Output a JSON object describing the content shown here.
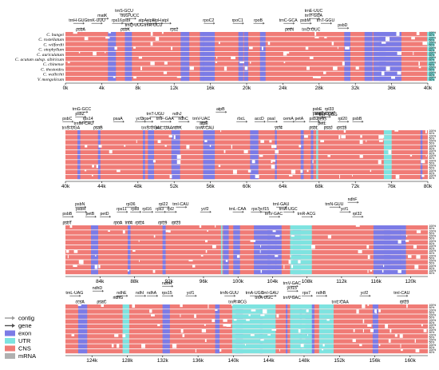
{
  "species": [
    "C. bungei",
    "C. rostellatum",
    "C. wilfordii",
    "C. otophyllum",
    "C. auriculatum",
    "C. acutum subsp. sibiricum",
    "C. chinense",
    "C. thesioides",
    "C. wallichii",
    "V. mongolicum"
  ],
  "percent_ticks": [
    "100%",
    "50%"
  ],
  "legend": [
    {
      "label": "contig",
      "kind": "arrow",
      "color": "#9a9a9a"
    },
    {
      "label": "gene",
      "kind": "arrow",
      "color": "#505050"
    },
    {
      "label": "exon",
      "kind": "box",
      "color": "#7b7be6"
    },
    {
      "label": "UTR",
      "kind": "box",
      "color": "#7ee3e0"
    },
    {
      "label": "CNS",
      "kind": "box",
      "color": "#f07b76"
    },
    {
      "label": "mRNA",
      "kind": "box",
      "color": "#b0b0b0"
    }
  ],
  "colors": {
    "exon": "#7b7be6",
    "utr": "#7ee3e0",
    "cns": "#f07b76",
    "mrna": "#b0b0b0",
    "gene_arrow": "#505050"
  },
  "panels": [
    {
      "axis": [
        "0k",
        "4k",
        "8k",
        "12k",
        "16k",
        "20k",
        "24k",
        "28k",
        "32k",
        "36k",
        "40k"
      ],
      "axis_range": [
        0,
        40
      ],
      "genes_top": [
        {
          "name": "matK",
          "pos": 10.2,
          "row": 2
        },
        {
          "name": "trnS-GCU",
          "pos": 16.2,
          "row": 3
        },
        {
          "name": "truG-UCC",
          "pos": 17.8,
          "row": 2
        },
        {
          "name": "trnH-GUG",
          "pos": 3.5,
          "row": 1
        },
        {
          "name": "trnK-UUU",
          "pos": 8.5,
          "row": 1
        },
        {
          "name": "rps16",
          "pos": 14.2,
          "row": 1
        },
        {
          "name": "psbI",
          "pos": 16.8,
          "row": 1
        },
        {
          "name": "atpA",
          "pos": 21.3,
          "row": 1
        },
        {
          "name": "atpF",
          "pos": 23.5,
          "row": 1
        },
        {
          "name": "atpH",
          "pos": 25.2,
          "row": 1
        },
        {
          "name": "atpI",
          "pos": 27.5,
          "row": 1
        },
        {
          "name": "rpoC2",
          "pos": 39.5,
          "row": 1
        },
        {
          "name": "rpoC1",
          "pos": 47.5,
          "row": 1
        },
        {
          "name": "rpoB",
          "pos": 53.2,
          "row": 1
        },
        {
          "name": "trnC-GCA",
          "pos": 61.5,
          "row": 1
        },
        {
          "name": "trnE-UUC",
          "pos": 68.5,
          "row": 3
        },
        {
          "name": "trnY-GUA",
          "pos": 68.5,
          "row": 2
        },
        {
          "name": "psbM",
          "pos": 66.2,
          "row": 1
        },
        {
          "name": "trnT-GGU",
          "pos": 71.8,
          "row": 1
        },
        {
          "name": "psbD",
          "pos": 76.5,
          "row": 0
        }
      ],
      "genes_bottom": [
        {
          "name": "psbA",
          "pos": 4.2,
          "row": 0
        },
        {
          "name": "psbK",
          "pos": 16.5,
          "row": 0
        },
        {
          "name": "trnQ-UUG",
          "pos": 19.0,
          "row": 1
        },
        {
          "name": "trnR-UCU",
          "pos": 24.2,
          "row": 1
        },
        {
          "name": "rps2",
          "pos": 30.0,
          "row": 0
        },
        {
          "name": "petN",
          "pos": 61.8,
          "row": 0
        },
        {
          "name": "trnD-GUC",
          "pos": 67.8,
          "row": 0
        }
      ]
    },
    {
      "axis": [
        "40k",
        "44k",
        "48k",
        "52k",
        "56k",
        "60k",
        "64k",
        "68k",
        "72k",
        "76k",
        "80k"
      ],
      "axis_range": [
        40,
        80
      ],
      "genes_top": [
        {
          "name": "trnG-GCC",
          "pos": 4.5,
          "row": 3
        },
        {
          "name": "psbZ",
          "pos": 4.0,
          "row": 2
        },
        {
          "name": "psbC",
          "pos": 0.5,
          "row": 1
        },
        {
          "name": "rps14",
          "pos": 6.2,
          "row": 1
        },
        {
          "name": "psaA",
          "pos": 14.5,
          "row": 1
        },
        {
          "name": "ycf3",
          "pos": 20.5,
          "row": 1
        },
        {
          "name": "trnT-UGU",
          "pos": 24.8,
          "row": 2
        },
        {
          "name": "rps4",
          "pos": 22.5,
          "row": 1
        },
        {
          "name": "trnF-GAA",
          "pos": 27.5,
          "row": 1
        },
        {
          "name": "ndhJ",
          "pos": 30.8,
          "row": 2
        },
        {
          "name": "ndhC",
          "pos": 32.5,
          "row": 1
        },
        {
          "name": "trnV-UAC",
          "pos": 37.5,
          "row": 1
        },
        {
          "name": "atpB",
          "pos": 42.8,
          "row": 3
        },
        {
          "name": "rbcL",
          "pos": 48.5,
          "row": 1
        },
        {
          "name": "accD",
          "pos": 53.5,
          "row": 1
        },
        {
          "name": "psaI",
          "pos": 56.8,
          "row": 1
        },
        {
          "name": "cemA",
          "pos": 61.5,
          "row": 1
        },
        {
          "name": "petA",
          "pos": 64.5,
          "row": 1
        },
        {
          "name": "psbE",
          "pos": 69.5,
          "row": 3
        },
        {
          "name": "psbF",
          "pos": 69.5,
          "row": 2
        },
        {
          "name": "psbJ",
          "pos": 68.5,
          "row": 1
        },
        {
          "name": "rpl33",
          "pos": 72.8,
          "row": 3
        },
        {
          "name": "trnW-CCA",
          "pos": 71.5,
          "row": 2
        },
        {
          "name": "rpl20",
          "pos": 76.5,
          "row": 1
        },
        {
          "name": "psbB",
          "pos": 80.5,
          "row": 1
        }
      ],
      "genes_bottom": [
        {
          "name": "trnS-UGA",
          "pos": 1.5,
          "row": 0
        },
        {
          "name": "psaB",
          "pos": 9.0,
          "row": 0
        },
        {
          "name": "trnfM-CAU",
          "pos": 5.0,
          "row": 1
        },
        {
          "name": "trnS-GGA",
          "pos": 23.5,
          "row": 0
        },
        {
          "name": "trnL-UAA",
          "pos": 27.2,
          "row": 0
        },
        {
          "name": "ndhK",
          "pos": 30.8,
          "row": 0
        },
        {
          "name": "trnM-CAU",
          "pos": 38.5,
          "row": 0
        },
        {
          "name": "atpE",
          "pos": 38.2,
          "row": 1
        },
        {
          "name": "ycf4",
          "pos": 58.8,
          "row": 0
        },
        {
          "name": "psbL",
          "pos": 68.5,
          "row": 0
        },
        {
          "name": "petL",
          "pos": 70.8,
          "row": 1
        },
        {
          "name": "petG",
          "pos": 70.8,
          "row": 2
        },
        {
          "name": "trnP-UGG",
          "pos": 72.5,
          "row": 3
        },
        {
          "name": "psaJ",
          "pos": 72.5,
          "row": 0
        },
        {
          "name": "rps18",
          "pos": 76.2,
          "row": 0
        }
      ]
    },
    {
      "axis": [
        "84k",
        "88k",
        "92k",
        "96k",
        "100k",
        "104k",
        "108k",
        "112k",
        "116k",
        "120k"
      ],
      "axis_range": [
        80,
        122
      ],
      "genes_top": [
        {
          "name": "psbN",
          "pos": 4.0,
          "row": 3
        },
        {
          "name": "psbH",
          "pos": 4.2,
          "row": 2
        },
        {
          "name": "psbB",
          "pos": 0.5,
          "row": 1
        },
        {
          "name": "petB",
          "pos": 6.8,
          "row": 1
        },
        {
          "name": "petD",
          "pos": 10.8,
          "row": 1
        },
        {
          "name": "rpl36",
          "pos": 18.0,
          "row": 3
        },
        {
          "name": "rps11",
          "pos": 15.5,
          "row": 2
        },
        {
          "name": "rps8",
          "pos": 19.2,
          "row": 2
        },
        {
          "name": "rpl16",
          "pos": 22.5,
          "row": 2
        },
        {
          "name": "rps3",
          "pos": 26.0,
          "row": 2
        },
        {
          "name": "rpl22",
          "pos": 27.0,
          "row": 3
        },
        {
          "name": "trnI-CAU",
          "pos": 31.8,
          "row": 3
        },
        {
          "name": "rpl2",
          "pos": 29.0,
          "row": 2
        },
        {
          "name": "ycf2",
          "pos": 38.5,
          "row": 2
        },
        {
          "name": "trnL-CAA",
          "pos": 47.5,
          "row": 2
        },
        {
          "name": "rps7",
          "pos": 52.5,
          "row": 2
        },
        {
          "name": "trnI-GAU",
          "pos": 59.5,
          "row": 3
        },
        {
          "name": "ycf15",
          "pos": 54.8,
          "row": 2
        },
        {
          "name": "trnV-GAC",
          "pos": 57.5,
          "row": 1
        },
        {
          "name": "trnA-UGC",
          "pos": 61.5,
          "row": 2
        },
        {
          "name": "trnR-ACG",
          "pos": 66.5,
          "row": 1
        },
        {
          "name": "trnN-GUU",
          "pos": 74.2,
          "row": 3
        },
        {
          "name": "ndhF",
          "pos": 79.2,
          "row": 4
        },
        {
          "name": "rpl32",
          "pos": 80.5,
          "row": 1
        },
        {
          "name": "ycf1",
          "pos": 77.0,
          "row": 2
        }
      ],
      "genes_bottom": [
        {
          "name": "psbT",
          "pos": 0.5,
          "row": 0
        },
        {
          "name": "rpoA",
          "pos": 14.5,
          "row": 0
        },
        {
          "name": "infA",
          "pos": 17.5,
          "row": 0
        },
        {
          "name": "rpl14",
          "pos": 20.5,
          "row": 0
        },
        {
          "name": "rpl19",
          "pos": 26.8,
          "row": 0
        },
        {
          "name": "rpl23",
          "pos": 30.5,
          "row": 0
        }
      ]
    },
    {
      "axis": [
        "124k",
        "128k",
        "132k",
        "136k",
        "140k",
        "144k",
        "148k",
        "152k",
        "156k",
        "160k"
      ],
      "axis_range": [
        121,
        162
      ],
      "genes_top": [
        {
          "name": "ndhH",
          "pos": 28.0,
          "row": 3
        },
        {
          "name": "trnL-UAG",
          "pos": 2.5,
          "row": 1
        },
        {
          "name": "ndhD",
          "pos": 8.8,
          "row": 2
        },
        {
          "name": "ndhE",
          "pos": 15.5,
          "row": 1
        },
        {
          "name": "ndhI",
          "pos": 20.5,
          "row": 1
        },
        {
          "name": "ndhA",
          "pos": 23.8,
          "row": 1
        },
        {
          "name": "rps15",
          "pos": 28.0,
          "row": 1
        },
        {
          "name": "ycf1",
          "pos": 34.5,
          "row": 1
        },
        {
          "name": "trnN-GUU",
          "pos": 45.2,
          "row": 1
        },
        {
          "name": "trnA-UGC",
          "pos": 52.2,
          "row": 1
        },
        {
          "name": "trnI-GAU",
          "pos": 56.5,
          "row": 1
        },
        {
          "name": "trnV-GAC",
          "pos": 62.5,
          "row": 3
        },
        {
          "name": "ycf15",
          "pos": 62.5,
          "row": 2
        },
        {
          "name": "rps7",
          "pos": 66.5,
          "row": 1
        },
        {
          "name": "ndhB",
          "pos": 70.5,
          "row": 1
        },
        {
          "name": "ycf2",
          "pos": 82.5,
          "row": 1
        },
        {
          "name": "trnI-CAU",
          "pos": 92.8,
          "row": 1
        }
      ],
      "genes_bottom": [
        {
          "name": "ccsA",
          "pos": 4.0,
          "row": 0
        },
        {
          "name": "psaC",
          "pos": 10.0,
          "row": 0
        },
        {
          "name": "ndhG",
          "pos": 14.5,
          "row": 1
        },
        {
          "name": "trnR-ACG",
          "pos": 47.5,
          "row": 0
        },
        {
          "name": "trnA-UGC",
          "pos": 54.8,
          "row": 1
        },
        {
          "name": "trnV-GAC",
          "pos": 62.5,
          "row": 1
        },
        {
          "name": "trnL-CAA",
          "pos": 75.8,
          "row": 0
        },
        {
          "name": "rpl23",
          "pos": 93.5,
          "row": 0
        }
      ]
    }
  ]
}
